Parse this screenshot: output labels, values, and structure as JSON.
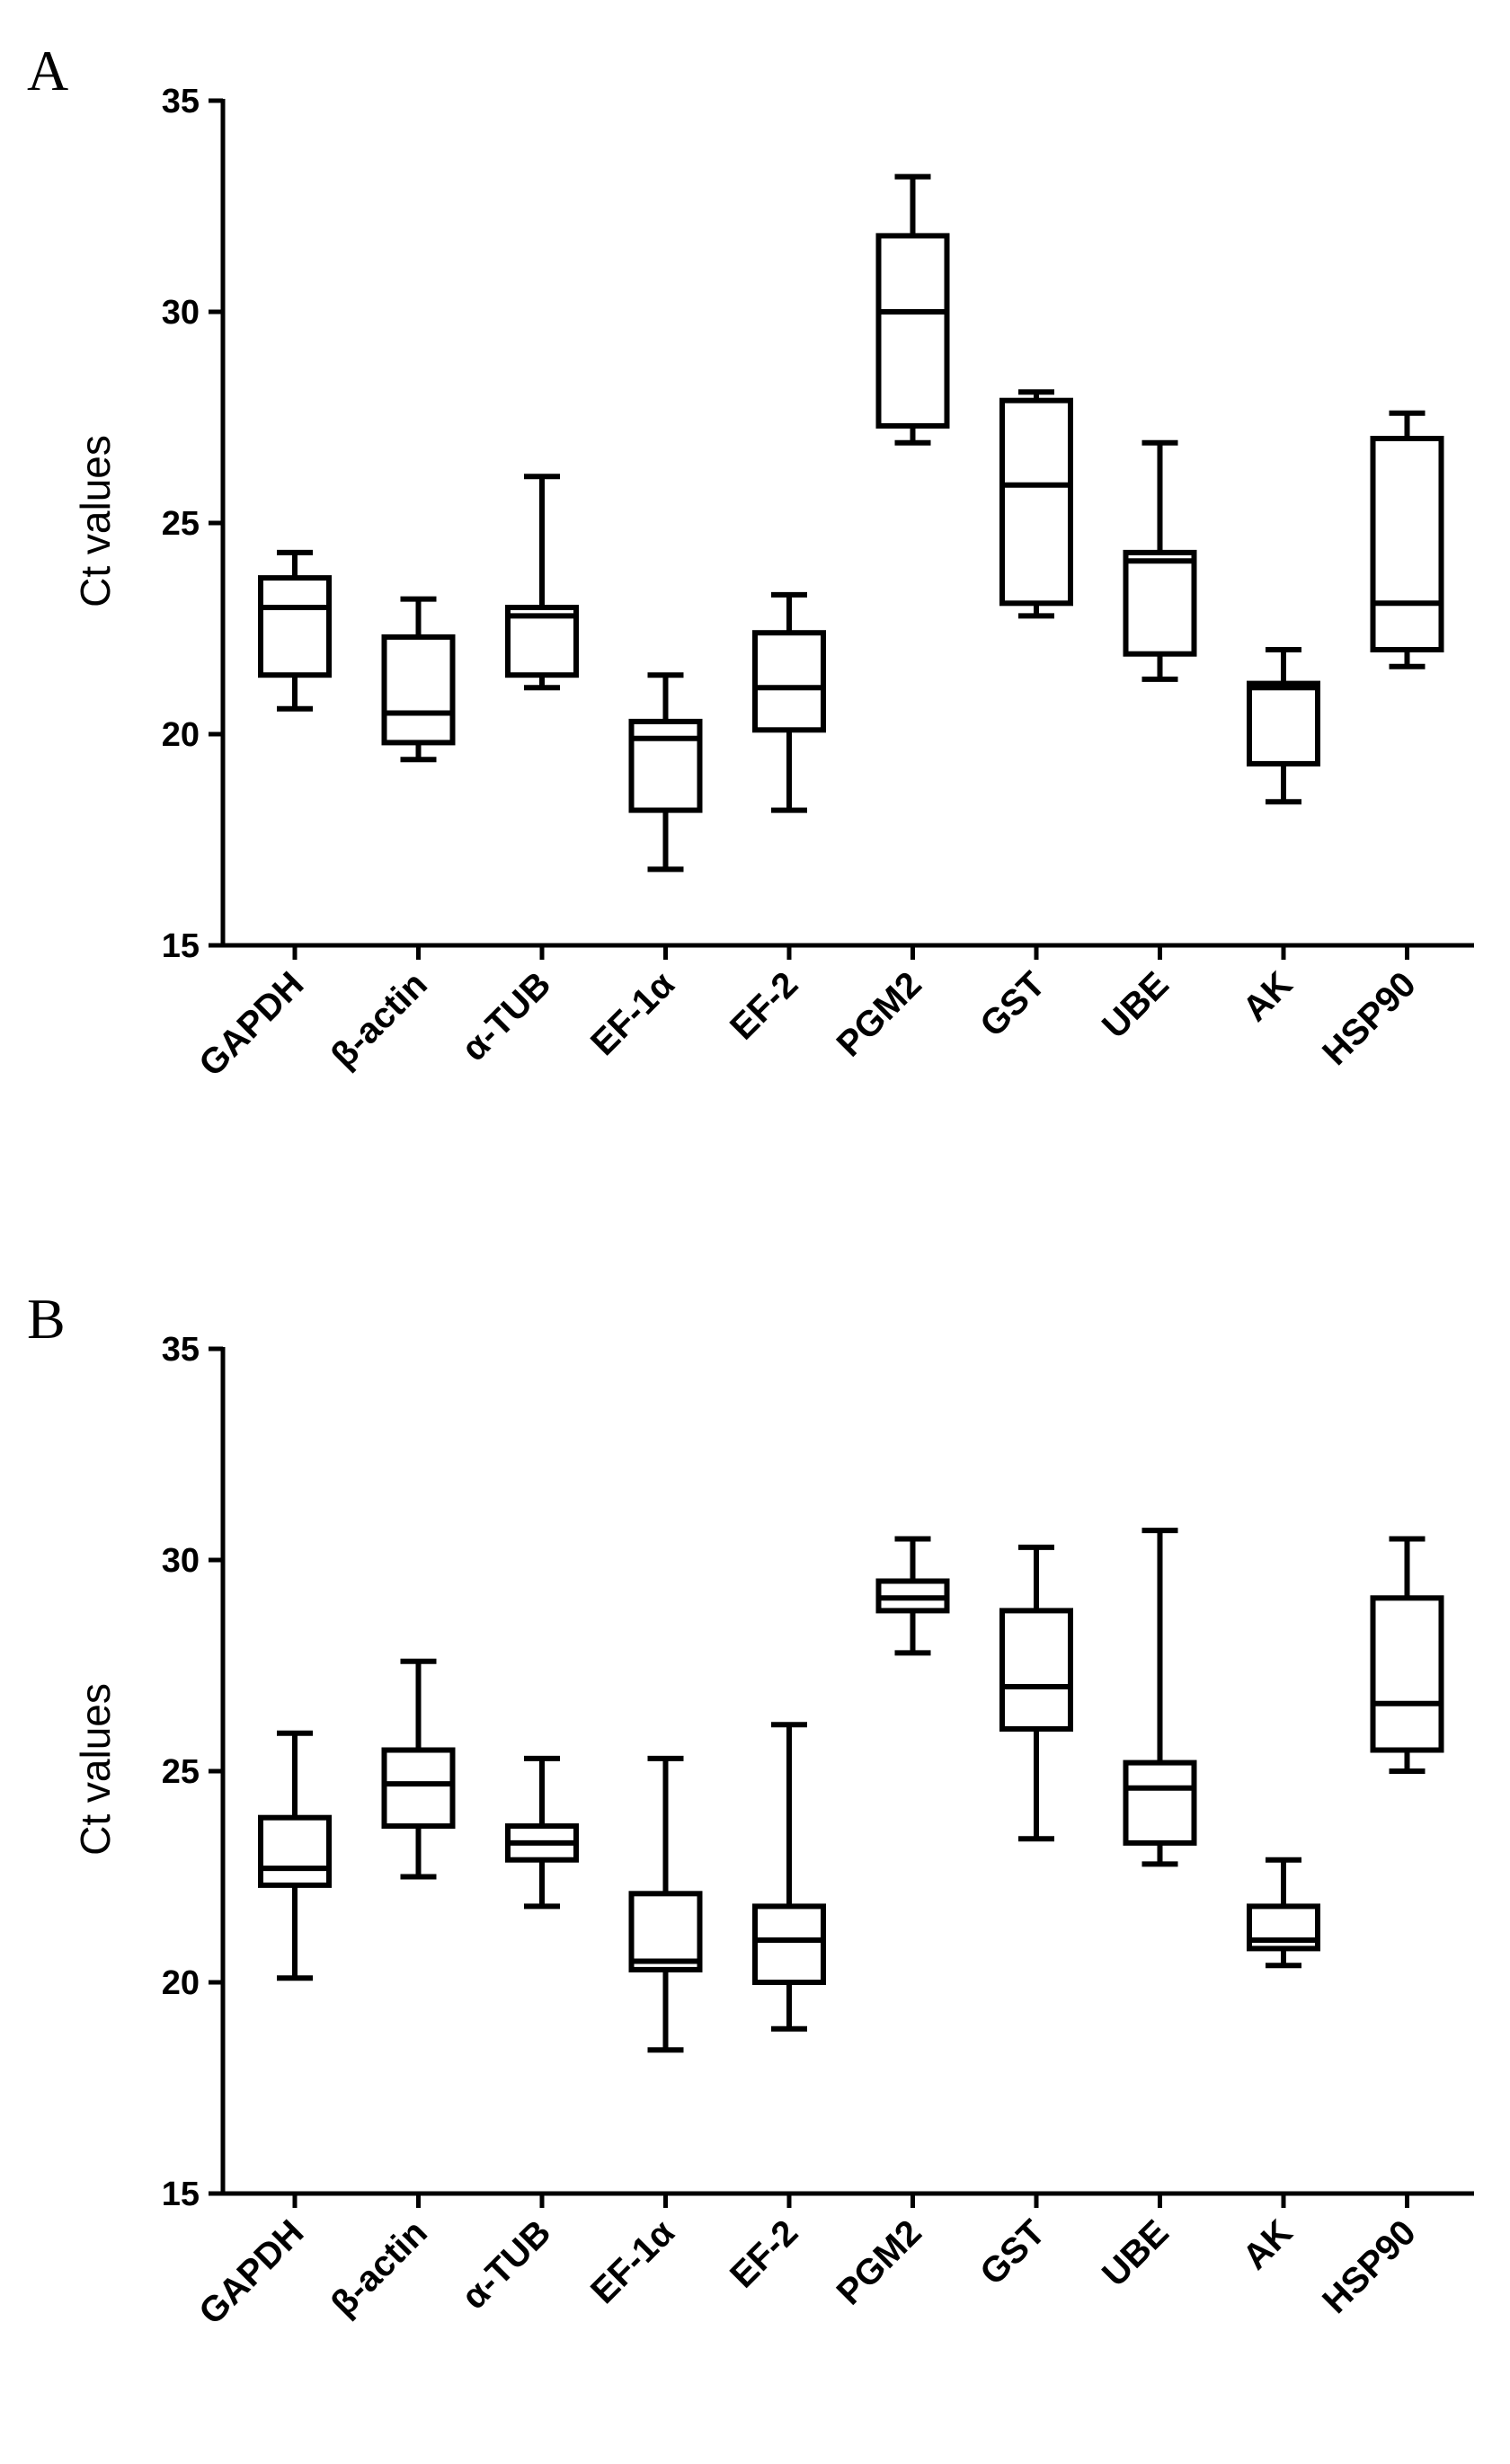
{
  "chart_data": [
    {
      "type": "box",
      "panel_label": "A",
      "ylabel": "Ct values",
      "ylim": [
        15,
        35
      ],
      "yticks": [
        15,
        20,
        25,
        30,
        35
      ],
      "categories": [
        "GAPDH",
        "β-actin",
        "α-TUB",
        "EF-1α",
        "EF-2",
        "PGM2",
        "GST",
        "UBE",
        "AK",
        "HSP90"
      ],
      "boxes": [
        {
          "min": 20.6,
          "q1": 21.4,
          "median": 23.0,
          "q3": 23.7,
          "max": 24.3
        },
        {
          "min": 19.4,
          "q1": 19.8,
          "median": 20.5,
          "q3": 22.3,
          "max": 23.2
        },
        {
          "min": 21.1,
          "q1": 21.4,
          "median": 22.8,
          "q3": 23.0,
          "max": 26.1
        },
        {
          "min": 16.8,
          "q1": 18.2,
          "median": 19.9,
          "q3": 20.3,
          "max": 21.4
        },
        {
          "min": 18.2,
          "q1": 20.1,
          "median": 21.1,
          "q3": 22.4,
          "max": 23.3
        },
        {
          "min": 26.9,
          "q1": 27.3,
          "median": 30.0,
          "q3": 31.8,
          "max": 33.2
        },
        {
          "min": 22.8,
          "q1": 23.1,
          "median": 25.9,
          "q3": 27.9,
          "max": 28.1
        },
        {
          "min": 21.3,
          "q1": 21.9,
          "median": 24.1,
          "q3": 24.3,
          "max": 26.9
        },
        {
          "min": 18.4,
          "q1": 19.3,
          "median": 21.1,
          "q3": 21.2,
          "max": 22.0
        },
        {
          "min": 21.6,
          "q1": 22.0,
          "median": 23.1,
          "q3": 27.0,
          "max": 27.6
        }
      ]
    },
    {
      "type": "box",
      "panel_label": "B",
      "ylabel": "Ct values",
      "ylim": [
        15,
        35
      ],
      "yticks": [
        15,
        20,
        25,
        30,
        35
      ],
      "categories": [
        "GAPDH",
        "β-actin",
        "α-TUB",
        "EF-1α",
        "EF-2",
        "PGM2",
        "GST",
        "UBE",
        "AK",
        "HSP90"
      ],
      "boxes": [
        {
          "min": 20.1,
          "q1": 22.3,
          "median": 22.7,
          "q3": 23.9,
          "max": 25.9
        },
        {
          "min": 22.5,
          "q1": 23.7,
          "median": 24.7,
          "q3": 25.5,
          "max": 27.6
        },
        {
          "min": 21.8,
          "q1": 22.9,
          "median": 23.3,
          "q3": 23.7,
          "max": 25.3
        },
        {
          "min": 18.4,
          "q1": 20.3,
          "median": 20.5,
          "q3": 22.1,
          "max": 25.3
        },
        {
          "min": 18.9,
          "q1": 20.0,
          "median": 21.0,
          "q3": 21.8,
          "max": 26.1
        },
        {
          "min": 27.8,
          "q1": 28.8,
          "median": 29.1,
          "q3": 29.5,
          "max": 30.5
        },
        {
          "min": 23.4,
          "q1": 26.0,
          "median": 27.0,
          "q3": 28.8,
          "max": 30.3
        },
        {
          "min": 22.8,
          "q1": 23.3,
          "median": 24.6,
          "q3": 25.2,
          "max": 30.7
        },
        {
          "min": 20.4,
          "q1": 20.8,
          "median": 21.0,
          "q3": 21.8,
          "max": 22.9
        },
        {
          "min": 25.0,
          "q1": 25.5,
          "median": 26.6,
          "q3": 29.1,
          "max": 30.5
        }
      ]
    }
  ]
}
